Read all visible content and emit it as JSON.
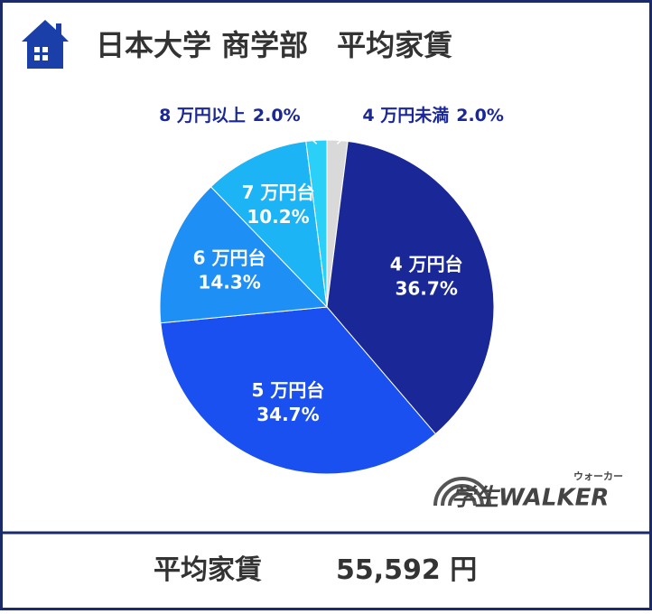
{
  "chart_data": {
    "type": "pie",
    "title": "日本大学 商学部　平均家賃",
    "categories": [
      "4 万円未満",
      "4 万円台",
      "5 万円台",
      "6 万円台",
      "7 万円台",
      "8 万円以上"
    ],
    "values": [
      2.0,
      36.7,
      34.7,
      14.3,
      10.2,
      2.0
    ],
    "value_labels": [
      "2.0%",
      "36.7%",
      "34.7%",
      "14.3%",
      "10.2%",
      "2.0%"
    ],
    "colors": [
      "#d9d9d9",
      "#1a2796",
      "#1a50f0",
      "#1e90f5",
      "#1cb4f5",
      "#2ad0f8"
    ],
    "footer": {
      "label": "平均家賃",
      "value": "55,592 円"
    },
    "logo": {
      "text": "学生WALKER",
      "ruby": "ウォーカー"
    }
  }
}
